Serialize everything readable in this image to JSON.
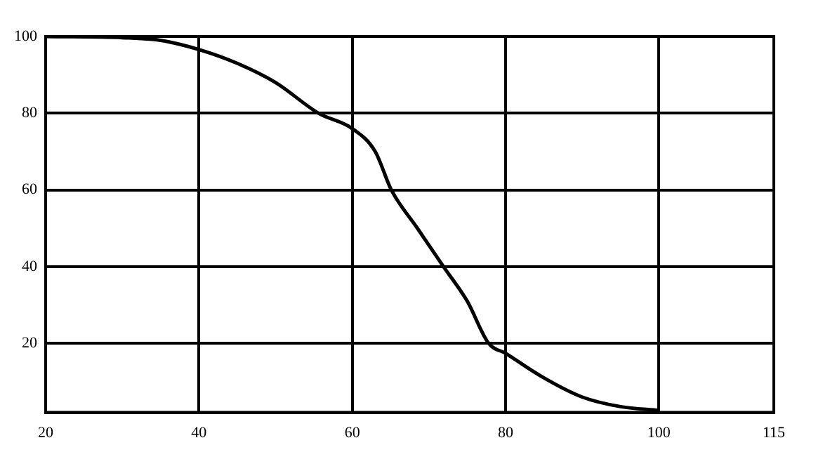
{
  "chart_data": {
    "type": "line",
    "x": [
      20,
      30,
      35,
      40,
      45,
      50,
      55.6,
      60,
      63,
      65.1,
      68.5,
      71.9,
      75,
      77.8,
      80,
      85,
      90,
      95,
      100
    ],
    "series": [
      {
        "color": "#000000",
        "values": [
          100,
          99.7,
          99,
          96.6,
          93,
          88,
          80,
          76,
          70,
          60,
          50,
          40,
          31,
          20,
          17.4,
          11,
          6,
          3.5,
          2.5
        ]
      }
    ],
    "xlim": [
      20,
      115
    ],
    "xticks": [
      20,
      40,
      60,
      80,
      100,
      115
    ],
    "ylim": [
      2,
      100
    ],
    "yticks": [
      20,
      40,
      60,
      80,
      100
    ],
    "grid": true,
    "marker": "none",
    "line_style": "solid",
    "legend": false
  }
}
